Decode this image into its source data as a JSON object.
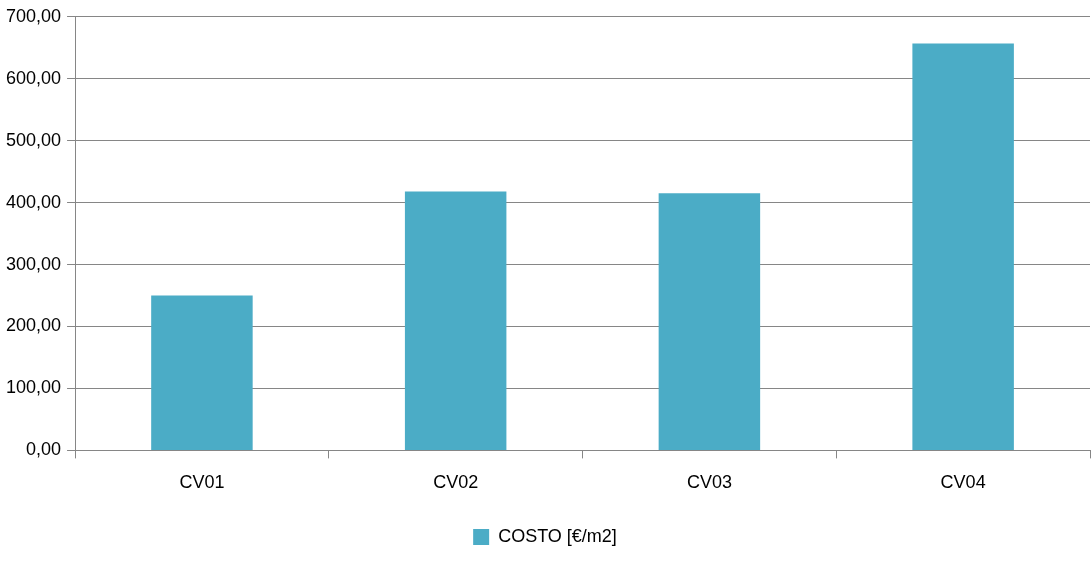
{
  "chart_data": {
    "type": "bar",
    "categories": [
      "CV01",
      "CV02",
      "CV03",
      "CV04"
    ],
    "series": [
      {
        "name": "COSTO [€/m2]",
        "color": "#4bacc6",
        "values": [
          250,
          418,
          415,
          657
        ]
      }
    ],
    "ylim": [
      0,
      700
    ],
    "yticks": [
      {
        "value": 0,
        "label": "0,00"
      },
      {
        "value": 100,
        "label": "100,00"
      },
      {
        "value": 200,
        "label": "200,00"
      },
      {
        "value": 300,
        "label": "300,00"
      },
      {
        "value": 400,
        "label": "400,00"
      },
      {
        "value": 500,
        "label": "500,00"
      },
      {
        "value": 600,
        "label": "600,00"
      },
      {
        "value": 700,
        "label": "700,00"
      }
    ],
    "grid": "y",
    "legend": "bottom"
  }
}
